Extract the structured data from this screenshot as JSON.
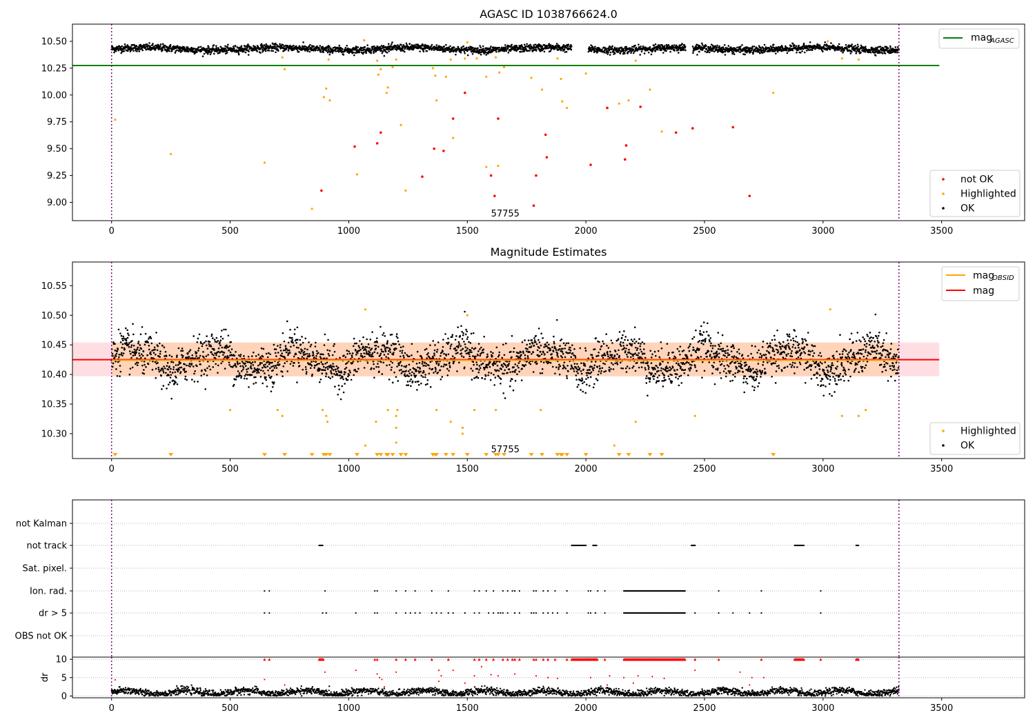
{
  "chart_data": [
    {
      "id": "top",
      "type": "scatter",
      "title": "AGASC ID 1038766624.0",
      "xlabel": "",
      "ylabel": "",
      "xlim": [
        -165,
        3850
      ],
      "ylim": [
        8.83,
        10.66
      ],
      "xticks": [
        0,
        500,
        1000,
        1500,
        2000,
        2500,
        3000,
        3500
      ],
      "yticks": [
        9.0,
        9.25,
        9.5,
        9.75,
        10.0,
        10.25,
        10.5
      ],
      "ytick_labels": [
        "9.00",
        "9.25",
        "9.50",
        "9.75",
        "10.00",
        "10.25",
        "10.50"
      ],
      "vlines": [
        0,
        3320
      ],
      "vline_color": "#800080",
      "annotation": {
        "text": "57755",
        "x": 1660,
        "y": 8.87
      },
      "hline": {
        "name": "mag",
        "subscript": "AGASC",
        "y": 10.275,
        "x_end": 3490,
        "color": "#008000"
      },
      "legend_placement": "bottom-right",
      "legend_top_placement": "top-right",
      "series": [
        {
          "name": "not OK",
          "color": "#ff0000",
          "marker": "point"
        },
        {
          "name": "Highlighted",
          "color": "#ffa500",
          "marker": "point"
        },
        {
          "name": "OK",
          "color": "#000000",
          "marker": "point",
          "band_center": 10.43,
          "band_halfwidth": 0.035
        }
      ],
      "not_ok_points": [
        [
          1025,
          9.52
        ],
        [
          1120,
          9.55
        ],
        [
          1135,
          9.65
        ],
        [
          1310,
          9.24
        ],
        [
          1360,
          9.5
        ],
        [
          1400,
          9.48
        ],
        [
          1440,
          9.78
        ],
        [
          1490,
          10.02
        ],
        [
          1600,
          9.25
        ],
        [
          1615,
          9.06
        ],
        [
          1630,
          9.78
        ],
        [
          1780,
          8.97
        ],
        [
          1790,
          9.25
        ],
        [
          1830,
          9.63
        ],
        [
          1835,
          9.42
        ],
        [
          2020,
          9.35
        ],
        [
          2090,
          9.88
        ],
        [
          2165,
          9.4
        ],
        [
          2170,
          9.53
        ],
        [
          2230,
          9.89
        ],
        [
          2380,
          9.65
        ],
        [
          2450,
          9.69
        ],
        [
          2620,
          9.7
        ],
        [
          2690,
          9.06
        ],
        [
          885,
          9.11
        ]
      ],
      "highlighted_points": [
        [
          15,
          9.77
        ],
        [
          250,
          9.45
        ],
        [
          645,
          9.37
        ],
        [
          720,
          10.35
        ],
        [
          730,
          10.24
        ],
        [
          845,
          8.94
        ],
        [
          895,
          9.98
        ],
        [
          905,
          10.06
        ],
        [
          915,
          10.33
        ],
        [
          920,
          9.95
        ],
        [
          1035,
          9.26
        ],
        [
          1065,
          10.51
        ],
        [
          1120,
          10.32
        ],
        [
          1125,
          10.19
        ],
        [
          1135,
          10.24
        ],
        [
          1160,
          10.02
        ],
        [
          1165,
          10.07
        ],
        [
          1185,
          10.26
        ],
        [
          1200,
          10.33
        ],
        [
          1220,
          9.72
        ],
        [
          1240,
          9.11
        ],
        [
          1355,
          10.25
        ],
        [
          1365,
          10.18
        ],
        [
          1370,
          9.95
        ],
        [
          1410,
          10.17
        ],
        [
          1430,
          10.33
        ],
        [
          1440,
          9.6
        ],
        [
          1490,
          10.34
        ],
        [
          1500,
          10.49
        ],
        [
          1540,
          10.34
        ],
        [
          1580,
          9.33
        ],
        [
          1580,
          10.17
        ],
        [
          1620,
          10.35
        ],
        [
          1635,
          10.21
        ],
        [
          1630,
          9.34
        ],
        [
          1655,
          10.26
        ],
        [
          1770,
          10.16
        ],
        [
          1815,
          10.05
        ],
        [
          1880,
          10.34
        ],
        [
          1895,
          10.15
        ],
        [
          1900,
          9.94
        ],
        [
          1920,
          9.88
        ],
        [
          2000,
          10.2
        ],
        [
          2140,
          9.92
        ],
        [
          2180,
          9.95
        ],
        [
          2210,
          10.32
        ],
        [
          2270,
          10.05
        ],
        [
          2320,
          9.66
        ],
        [
          2790,
          10.02
        ],
        [
          3020,
          10.5
        ],
        [
          3080,
          10.34
        ],
        [
          3150,
          10.33
        ]
      ],
      "ok_gaps": [
        [
          1940,
          2010
        ],
        [
          2420,
          2450
        ]
      ]
    },
    {
      "id": "middle",
      "type": "scatter",
      "title": "Magnitude Estimates",
      "xlabel": "",
      "ylabel": "",
      "xlim": [
        -165,
        3850
      ],
      "ylim": [
        10.258,
        10.59
      ],
      "xticks": [
        0,
        500,
        1000,
        1500,
        2000,
        2500,
        3000,
        3500
      ],
      "yticks": [
        10.3,
        10.35,
        10.4,
        10.45,
        10.5,
        10.55
      ],
      "ytick_labels": [
        "10.30",
        "10.35",
        "10.40",
        "10.45",
        "10.50",
        "10.55"
      ],
      "vlines": [
        0,
        3320
      ],
      "vline_color": "#800080",
      "annotation": {
        "text": "57755",
        "x": 1660,
        "y": 10.262
      },
      "lines": [
        {
          "name": "mag",
          "subscript": "OBSID",
          "color": "#ffa500",
          "y": 10.424
        },
        {
          "name": "mag",
          "subscript": "",
          "color": "#ff0000",
          "y": 10.425
        }
      ],
      "band_mag": {
        "low": 10.397,
        "high": 10.454,
        "color": "#ffb6c1",
        "x_start": -165,
        "x_end": 3490
      },
      "band_obsid": {
        "low": 10.397,
        "high": 10.454,
        "color": "#ffa500",
        "x_start": 0,
        "x_end": 3320
      },
      "legend_top_placement": "top-right",
      "legend_placement": "bottom-right",
      "series": [
        {
          "name": "Highlighted",
          "color": "#ffa500",
          "marker": "point"
        },
        {
          "name": "OK",
          "color": "#000000",
          "marker": "point",
          "center": 10.425,
          "spread": 0.03
        }
      ],
      "highlighted_points": [
        [
          500,
          10.34
        ],
        [
          700,
          10.34
        ],
        [
          720,
          10.33
        ],
        [
          890,
          10.34
        ],
        [
          905,
          10.33
        ],
        [
          910,
          10.32
        ],
        [
          1070,
          10.28
        ],
        [
          1070,
          10.51
        ],
        [
          1115,
          10.32
        ],
        [
          1165,
          10.34
        ],
        [
          1200,
          10.33
        ],
        [
          1205,
          10.34
        ],
        [
          1200,
          10.285
        ],
        [
          1200,
          10.31
        ],
        [
          1370,
          10.34
        ],
        [
          1430,
          10.32
        ],
        [
          1480,
          10.3
        ],
        [
          1480,
          10.31
        ],
        [
          1500,
          10.5
        ],
        [
          1530,
          10.34
        ],
        [
          1620,
          10.34
        ],
        [
          1810,
          10.34
        ],
        [
          2120,
          10.28
        ],
        [
          2210,
          10.32
        ],
        [
          2460,
          10.33
        ],
        [
          3030,
          10.51
        ],
        [
          3080,
          10.33
        ],
        [
          3150,
          10.33
        ],
        [
          3180,
          10.34
        ]
      ],
      "lower_limit_markers": [
        15,
        250,
        645,
        730,
        845,
        895,
        905,
        920,
        1035,
        1120,
        1135,
        1160,
        1165,
        1185,
        1220,
        1240,
        1355,
        1365,
        1370,
        1410,
        1440,
        1500,
        1580,
        1620,
        1630,
        1655,
        1770,
        1815,
        1880,
        1895,
        1900,
        1920,
        2000,
        2140,
        2180,
        2270,
        2320,
        2790
      ]
    },
    {
      "id": "flags",
      "type": "scatter",
      "title": "",
      "xlim": [
        -165,
        3850
      ],
      "categories": [
        "not Kalman",
        "not track",
        "Sat. pixel.",
        "Ion. rad.",
        "dr > 5",
        "OBS not OK"
      ],
      "vlines": [
        0,
        3320
      ],
      "flag_ranges": {
        "not track": [
          [
            875,
            890
          ],
          [
            1940,
            2000
          ],
          [
            2030,
            2045
          ],
          [
            2445,
            2460
          ],
          [
            2880,
            2920
          ],
          [
            3140,
            3150
          ]
        ],
        "Ion. rad.": [
          [
            2160,
            2420
          ]
        ],
        "dr > 5": [
          [
            2160,
            2420
          ]
        ]
      },
      "flag_points": {
        "Ion. rad.": [
          645,
          665,
          900,
          1110,
          1120,
          1200,
          1240,
          1280,
          1350,
          1420,
          1530,
          1550,
          1580,
          1610,
          1650,
          1670,
          1690,
          1700,
          1720,
          1780,
          1790,
          1820,
          1840,
          1870,
          1920,
          2010,
          2020,
          2050,
          2080,
          2560,
          2740,
          2990
        ],
        "dr > 5": [
          645,
          665,
          890,
          905,
          1030,
          1110,
          1120,
          1200,
          1240,
          1260,
          1280,
          1300,
          1350,
          1370,
          1390,
          1420,
          1440,
          1490,
          1530,
          1550,
          1590,
          1610,
          1630,
          1640,
          1650,
          1670,
          1700,
          1720,
          1770,
          1780,
          1790,
          1820,
          1840,
          1860,
          1880,
          1920,
          2010,
          2020,
          2040,
          2080,
          2460,
          2560,
          2620,
          2690,
          2740,
          2990
        ]
      }
    },
    {
      "id": "dr",
      "type": "scatter",
      "ylabel": "dr",
      "xlim": [
        -165,
        3850
      ],
      "ylim": [
        -0.5,
        10.6
      ],
      "xticks": [
        0,
        500,
        1000,
        1500,
        2000,
        2500,
        3000,
        3500
      ],
      "yticks": [
        0,
        5,
        10
      ],
      "ytick_labels": [
        "0",
        "5",
        "10"
      ],
      "vlines": [
        0,
        3320
      ],
      "series": [
        {
          "name": "OK",
          "color": "#000000",
          "center": 1.0,
          "spread": 0.8
        },
        {
          "name": "dr > 5",
          "color": "#ff0000"
        }
      ],
      "red_clip_ranges": [
        [
          875,
          895
        ],
        [
          1940,
          2050
        ],
        [
          2160,
          2420
        ],
        [
          2880,
          2920
        ],
        [
          3140,
          3150
        ]
      ],
      "red_clip_points": [
        645,
        665,
        1110,
        1120,
        1200,
        1240,
        1280,
        1350,
        1420,
        1530,
        1550,
        1580,
        1610,
        1650,
        1670,
        1690,
        1700,
        1720,
        1780,
        1790,
        1820,
        1840,
        1870,
        1920,
        2010,
        2080,
        2460,
        2560,
        2740,
        2990
      ],
      "red_low_points": [
        [
          15,
          4.4
        ],
        [
          645,
          4.5
        ],
        [
          900,
          6.5
        ],
        [
          1030,
          7.0
        ],
        [
          1120,
          6.0
        ],
        [
          1130,
          5.0
        ],
        [
          1140,
          4.5
        ],
        [
          1200,
          6.5
        ],
        [
          1380,
          7.0
        ],
        [
          1390,
          5.5
        ],
        [
          1440,
          7.0
        ],
        [
          1530,
          5.5
        ],
        [
          1560,
          8.0
        ],
        [
          1600,
          5.8
        ],
        [
          1630,
          5.5
        ],
        [
          1700,
          6.0
        ],
        [
          1790,
          5.5
        ],
        [
          1840,
          5.0
        ],
        [
          1880,
          4.8
        ],
        [
          2020,
          5.0
        ],
        [
          2100,
          5.5
        ],
        [
          2160,
          5.0
        ],
        [
          2220,
          5.5
        ],
        [
          2280,
          5.3
        ],
        [
          2330,
          4.8
        ],
        [
          2460,
          7.0
        ],
        [
          2650,
          6.5
        ],
        [
          2690,
          3.0
        ],
        [
          2700,
          5.0
        ],
        [
          2750,
          5.0
        ],
        [
          730,
          3.0
        ],
        [
          1150,
          2.5
        ],
        [
          1380,
          4.0
        ],
        [
          1490,
          3.5
        ],
        [
          2090,
          3.0
        ],
        [
          2200,
          3.5
        ]
      ]
    }
  ]
}
